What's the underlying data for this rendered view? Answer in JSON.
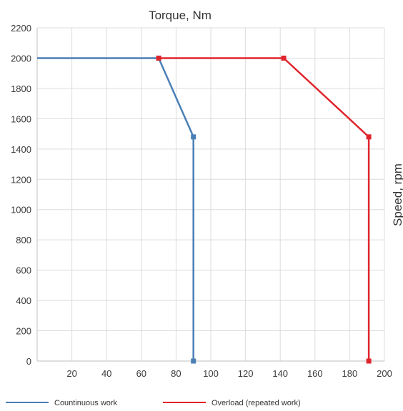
{
  "chart_data": {
    "type": "line",
    "xlabel": "Torque, Nm",
    "ylabel": "Speed, rpm",
    "xlim": [
      0,
      200
    ],
    "ylim": [
      0,
      2200
    ],
    "xticks": [
      20,
      40,
      60,
      80,
      100,
      120,
      140,
      160,
      180,
      200
    ],
    "yticks": [
      0,
      200,
      400,
      600,
      800,
      1000,
      1200,
      1400,
      1600,
      1800,
      2000,
      2200
    ],
    "grid": true,
    "legend_position": "bottom",
    "series": [
      {
        "name": "Countinuous work",
        "color": "#4a7fb5",
        "points": [
          [
            0,
            2000
          ],
          [
            70,
            2000
          ],
          [
            90,
            1480
          ],
          [
            90,
            0
          ]
        ]
      },
      {
        "name": "Overload (repeated work)",
        "color": "#e0242c",
        "points": [
          [
            70,
            2000
          ],
          [
            142,
            2000
          ],
          [
            191,
            1480
          ],
          [
            191,
            0
          ]
        ]
      }
    ]
  }
}
